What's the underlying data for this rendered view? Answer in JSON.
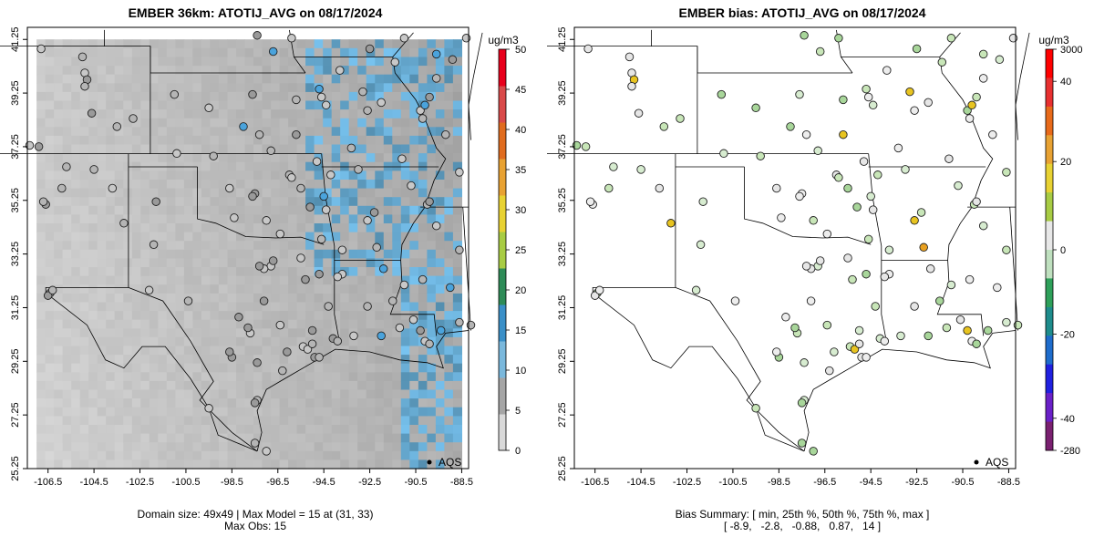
{
  "panels": [
    {
      "title": "EMBER 36km: ATOTIJ_AVG on 08/17/2024",
      "colorbar": {
        "unit": "ug/m3",
        "ticks": [
          "0",
          "5",
          "10",
          "15",
          "20",
          "25",
          "30",
          "35",
          "40",
          "45",
          "50"
        ],
        "colors": [
          "#d9d9d9",
          "#a5a5a5",
          "#7ab8dc",
          "#3a8fc7",
          "#2e8b57",
          "#a8cc44",
          "#e8d233",
          "#e8a233",
          "#e06c1f",
          "#d94a4a",
          "#e8001c"
        ]
      },
      "summary_lines": [
        "Domain size: 49x49 | Max Model = 15 at (31, 33)",
        "Max Obs: 15"
      ],
      "legend_label": "AQS"
    },
    {
      "title": "EMBER bias: ATOTIJ_AVG on 08/17/2024",
      "colorbar": {
        "unit": "ug/m3",
        "ticks": [
          "3000",
          "40",
          "20",
          "0",
          "-20",
          "-40",
          "-280"
        ],
        "colors": [
          "#ff0000",
          "#e83030",
          "#e86a1a",
          "#e8a233",
          "#e8d233",
          "#a8cc44",
          "#e8e8e8",
          "#bfe0bf",
          "#2ea05a",
          "#1e8c8c",
          "#1e6ccc",
          "#2020e0",
          "#6a20c8",
          "#7a2070"
        ]
      },
      "summary_lines": [
        "Bias Summary: [ min, 25th %, 50th %, 75th %, max ]",
        "[ -8.9,   -2.8,   -0.88,   0.87,   14 ]"
      ],
      "legend_label": "AQS"
    }
  ],
  "chart_data": [
    {
      "type": "heatmap",
      "title": "EMBER 36km: ATOTIJ_AVG on 08/17/2024",
      "x_ticks": [
        "-106.5",
        "-104.5",
        "-102.5",
        "-100.5",
        "-98.5",
        "-96.5",
        "-94.5",
        "-92.5",
        "-90.5",
        "-88.5"
      ],
      "y_ticks": [
        "41.25",
        "39.25",
        "37.25",
        "35.25",
        "33.25",
        "31.25",
        "29.25",
        "27.25",
        "25.25"
      ],
      "xlim": [
        -107.4,
        -88.2
      ],
      "ylim": [
        25.25,
        41.7
      ],
      "grid_size": "49x49",
      "value_range": [
        0,
        50
      ],
      "max_model": 15,
      "max_model_cell": [
        31,
        33
      ],
      "max_obs": 15,
      "unit": "ug/m3",
      "legend": "AQS",
      "grid": false
    },
    {
      "type": "scatter",
      "title": "EMBER bias: ATOTIJ_AVG on 08/17/2024",
      "x_ticks": [
        "-106.5",
        "-104.5",
        "-102.5",
        "-100.5",
        "-98.5",
        "-96.5",
        "-94.5",
        "-92.5",
        "-90.5",
        "-88.5"
      ],
      "y_ticks": [
        "41.25",
        "39.25",
        "37.25",
        "35.25",
        "33.25",
        "31.25",
        "29.25",
        "27.25",
        "25.25"
      ],
      "xlim": [
        -107.4,
        -88.2
      ],
      "ylim": [
        25.25,
        41.7
      ],
      "bias_summary": {
        "min": -8.9,
        "p25": -2.8,
        "p50": -0.88,
        "p75": 0.87,
        "max": 14
      },
      "colorbar_ticks": [
        3000,
        40,
        20,
        0,
        -20,
        -40,
        -280
      ],
      "unit": "ug/m3",
      "legend": "AQS",
      "grid": false
    }
  ]
}
